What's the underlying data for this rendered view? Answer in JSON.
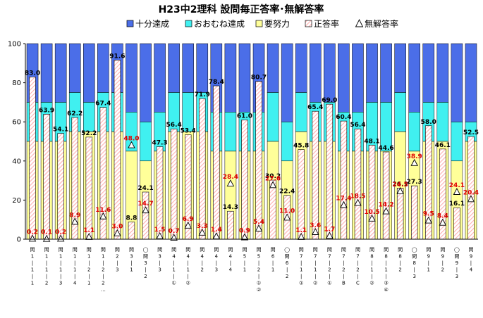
{
  "chart_data": {
    "type": "bar",
    "title": "H23中2理科 設問毎正答率･無解答率",
    "legend": [
      "十分達成",
      "おおむね達成",
      "要努力",
      "正答率",
      "無解答率"
    ],
    "colors": {
      "juubun": "#4b6ee8",
      "oomune": "#40f0f0",
      "youdoryoku": "#ffff99",
      "seitou": "#ffb0b0",
      "axis": "#000000",
      "nolabel": "#e00000"
    },
    "ylim": [
      0,
      100
    ],
    "yticks": [
      "0",
      "20",
      "40",
      "60",
      "80",
      "100"
    ],
    "categories": [
      "問1-1-1",
      "問1-1-2",
      "問1-1-3",
      "問1-1-4",
      "問1-2-1",
      "問1-2-2…",
      "問2-3",
      "問3-1",
      "◯問3-2",
      "問3-3",
      "問4-1-①",
      "問4-1-②",
      "問4-2",
      "問4-3",
      "問4-4",
      "問5-1",
      "問5-2-①②",
      "問6-1",
      "◯問6-2",
      "問7-1-①",
      "問7-1-②",
      "問7-2-①",
      "問7-2-B",
      "問7-2-C",
      "問8-1-②",
      "問8-1-③④",
      "問8-2",
      "◯問8-3",
      "問9-1",
      "問9-2",
      "◯問9-3",
      "問9-4"
    ],
    "category_parts": [
      [
        "問",
        "1",
        "|",
        "1",
        "|",
        "1"
      ],
      [
        "問",
        "1",
        "|",
        "1",
        "|",
        "2"
      ],
      [
        "問",
        "1",
        "|",
        "1",
        "|",
        "3"
      ],
      [
        "問",
        "1",
        "|",
        "1",
        "|",
        "4"
      ],
      [
        "問",
        "1",
        "|",
        "2",
        "|",
        "1"
      ],
      [
        "問",
        "1",
        "|",
        "2",
        "|",
        "2",
        "…"
      ],
      [
        "問",
        "2",
        "|",
        "3"
      ],
      [
        "問",
        "3",
        "|",
        "1"
      ],
      [
        "◯",
        "問",
        "3",
        "|",
        "2"
      ],
      [
        "問",
        "3",
        "|",
        "3"
      ],
      [
        "問",
        "4",
        "|",
        "1",
        "|",
        "①"
      ],
      [
        "問",
        "4",
        "|",
        "1",
        "|",
        "②"
      ],
      [
        "問",
        "4",
        "|",
        "2"
      ],
      [
        "問",
        "4",
        "|",
        "3"
      ],
      [
        "問",
        "4",
        "|",
        "4"
      ],
      [
        "問",
        "5",
        "|",
        "1"
      ],
      [
        "問",
        "5",
        "|",
        "2",
        "|",
        "①",
        "②"
      ],
      [
        "問",
        "6",
        "|",
        "1"
      ],
      [
        "◯",
        "問",
        "6",
        "|",
        "2"
      ],
      [
        "問",
        "7",
        "|",
        "1",
        "|",
        "①"
      ],
      [
        "問",
        "7",
        "|",
        "1",
        "|",
        "②"
      ],
      [
        "問",
        "7",
        "|",
        "2",
        "|",
        "①"
      ],
      [
        "問",
        "7",
        "|",
        "2",
        "|",
        "B"
      ],
      [
        "問",
        "7",
        "|",
        "2",
        "|",
        "C"
      ],
      [
        "問",
        "8",
        "|",
        "1",
        "|",
        "②"
      ],
      [
        "問",
        "8",
        "|",
        "1",
        "|",
        "③",
        "④"
      ],
      [
        "問",
        "8",
        "|",
        "2"
      ],
      [
        "◯",
        "問",
        "8",
        "|",
        "3"
      ],
      [
        "問",
        "9",
        "|",
        "1"
      ],
      [
        "問",
        "9",
        "|",
        "2"
      ],
      [
        "◯",
        "問",
        "9",
        "|",
        "3"
      ],
      [
        "問",
        "9",
        "|",
        "4"
      ]
    ],
    "series": [
      {
        "name": "正答率",
        "values": [
          83.0,
          63.9,
          54.1,
          62.2,
          52.2,
          67.4,
          91.6,
          8.8,
          24.1,
          47.3,
          56.4,
          53.4,
          71.9,
          78.4,
          14.3,
          61.0,
          80.7,
          30.2,
          22.4,
          45.8,
          65.4,
          69.0,
          60.4,
          56.4,
          48.1,
          44.6,
          26.1,
          27.3,
          58.0,
          46.1,
          16.1,
          52.5
        ]
      },
      {
        "name": "無解答率",
        "values": [
          0.2,
          0.1,
          0.2,
          8.9,
          1.1,
          11.6,
          3.0,
          48.0,
          14.7,
          1.5,
          0.7,
          6.9,
          3.3,
          1.4,
          28.4,
          0.9,
          5.4,
          27.6,
          11.0,
          1.1,
          3.6,
          1.7,
          17.4,
          18.5,
          10.5,
          14.2,
          24.5,
          38.9,
          9.5,
          8.4,
          24.1,
          20.4
        ]
      }
    ],
    "value_labels": [
      "83.0",
      "63.9",
      "54.1",
      "62.2",
      "52.2",
      "67.4",
      "91.6",
      "8.8",
      "24.1",
      "47.3",
      "56.4",
      "53.4",
      "71.9",
      "78.4",
      "14.3",
      "61.0",
      "80.7",
      "30.2",
      "22.4",
      "45.8",
      "65.4",
      "69.0",
      "60.4",
      "56.4",
      "48.1",
      "44.6",
      "26.1",
      "27.3",
      "58.0",
      "46.1",
      "16.1",
      "52.5"
    ],
    "noanswer_labels": [
      "0.2",
      "0.1",
      "0.2",
      "8.9",
      "1.1",
      "11.6",
      "3.0",
      "48.0",
      "14.7",
      "1.5",
      "0.7",
      "6.9",
      "3.3",
      "1.4",
      "28.4",
      "0.9",
      "5.4",
      "27.6",
      "11.0",
      "1.1",
      "3.6",
      "1.7",
      "17.4",
      "18.5",
      "10.5",
      "14.2",
      "24.5",
      "38.9",
      "9.5",
      "8.4",
      "24.1",
      "20.4"
    ],
    "bands": [
      [
        50,
        70
      ],
      [
        50,
        70
      ],
      [
        50,
        70
      ],
      [
        55,
        75
      ],
      [
        55,
        70
      ],
      [
        55,
        75
      ],
      [
        55,
        75
      ],
      [
        45,
        65
      ],
      [
        40,
        60
      ],
      [
        45,
        65
      ],
      [
        55,
        75
      ],
      [
        55,
        75
      ],
      [
        55,
        75
      ],
      [
        45,
        65
      ],
      [
        45,
        65
      ],
      [
        45,
        65
      ],
      [
        45,
        65
      ],
      [
        50,
        75
      ],
      [
        40,
        60
      ],
      [
        55,
        75
      ],
      [
        50,
        70
      ],
      [
        50,
        70
      ],
      [
        45,
        65
      ],
      [
        45,
        65
      ],
      [
        45,
        70
      ],
      [
        45,
        70
      ],
      [
        55,
        75
      ],
      [
        45,
        65
      ],
      [
        50,
        70
      ],
      [
        50,
        70
      ],
      [
        40,
        60
      ],
      [
        50,
        60
      ]
    ]
  }
}
